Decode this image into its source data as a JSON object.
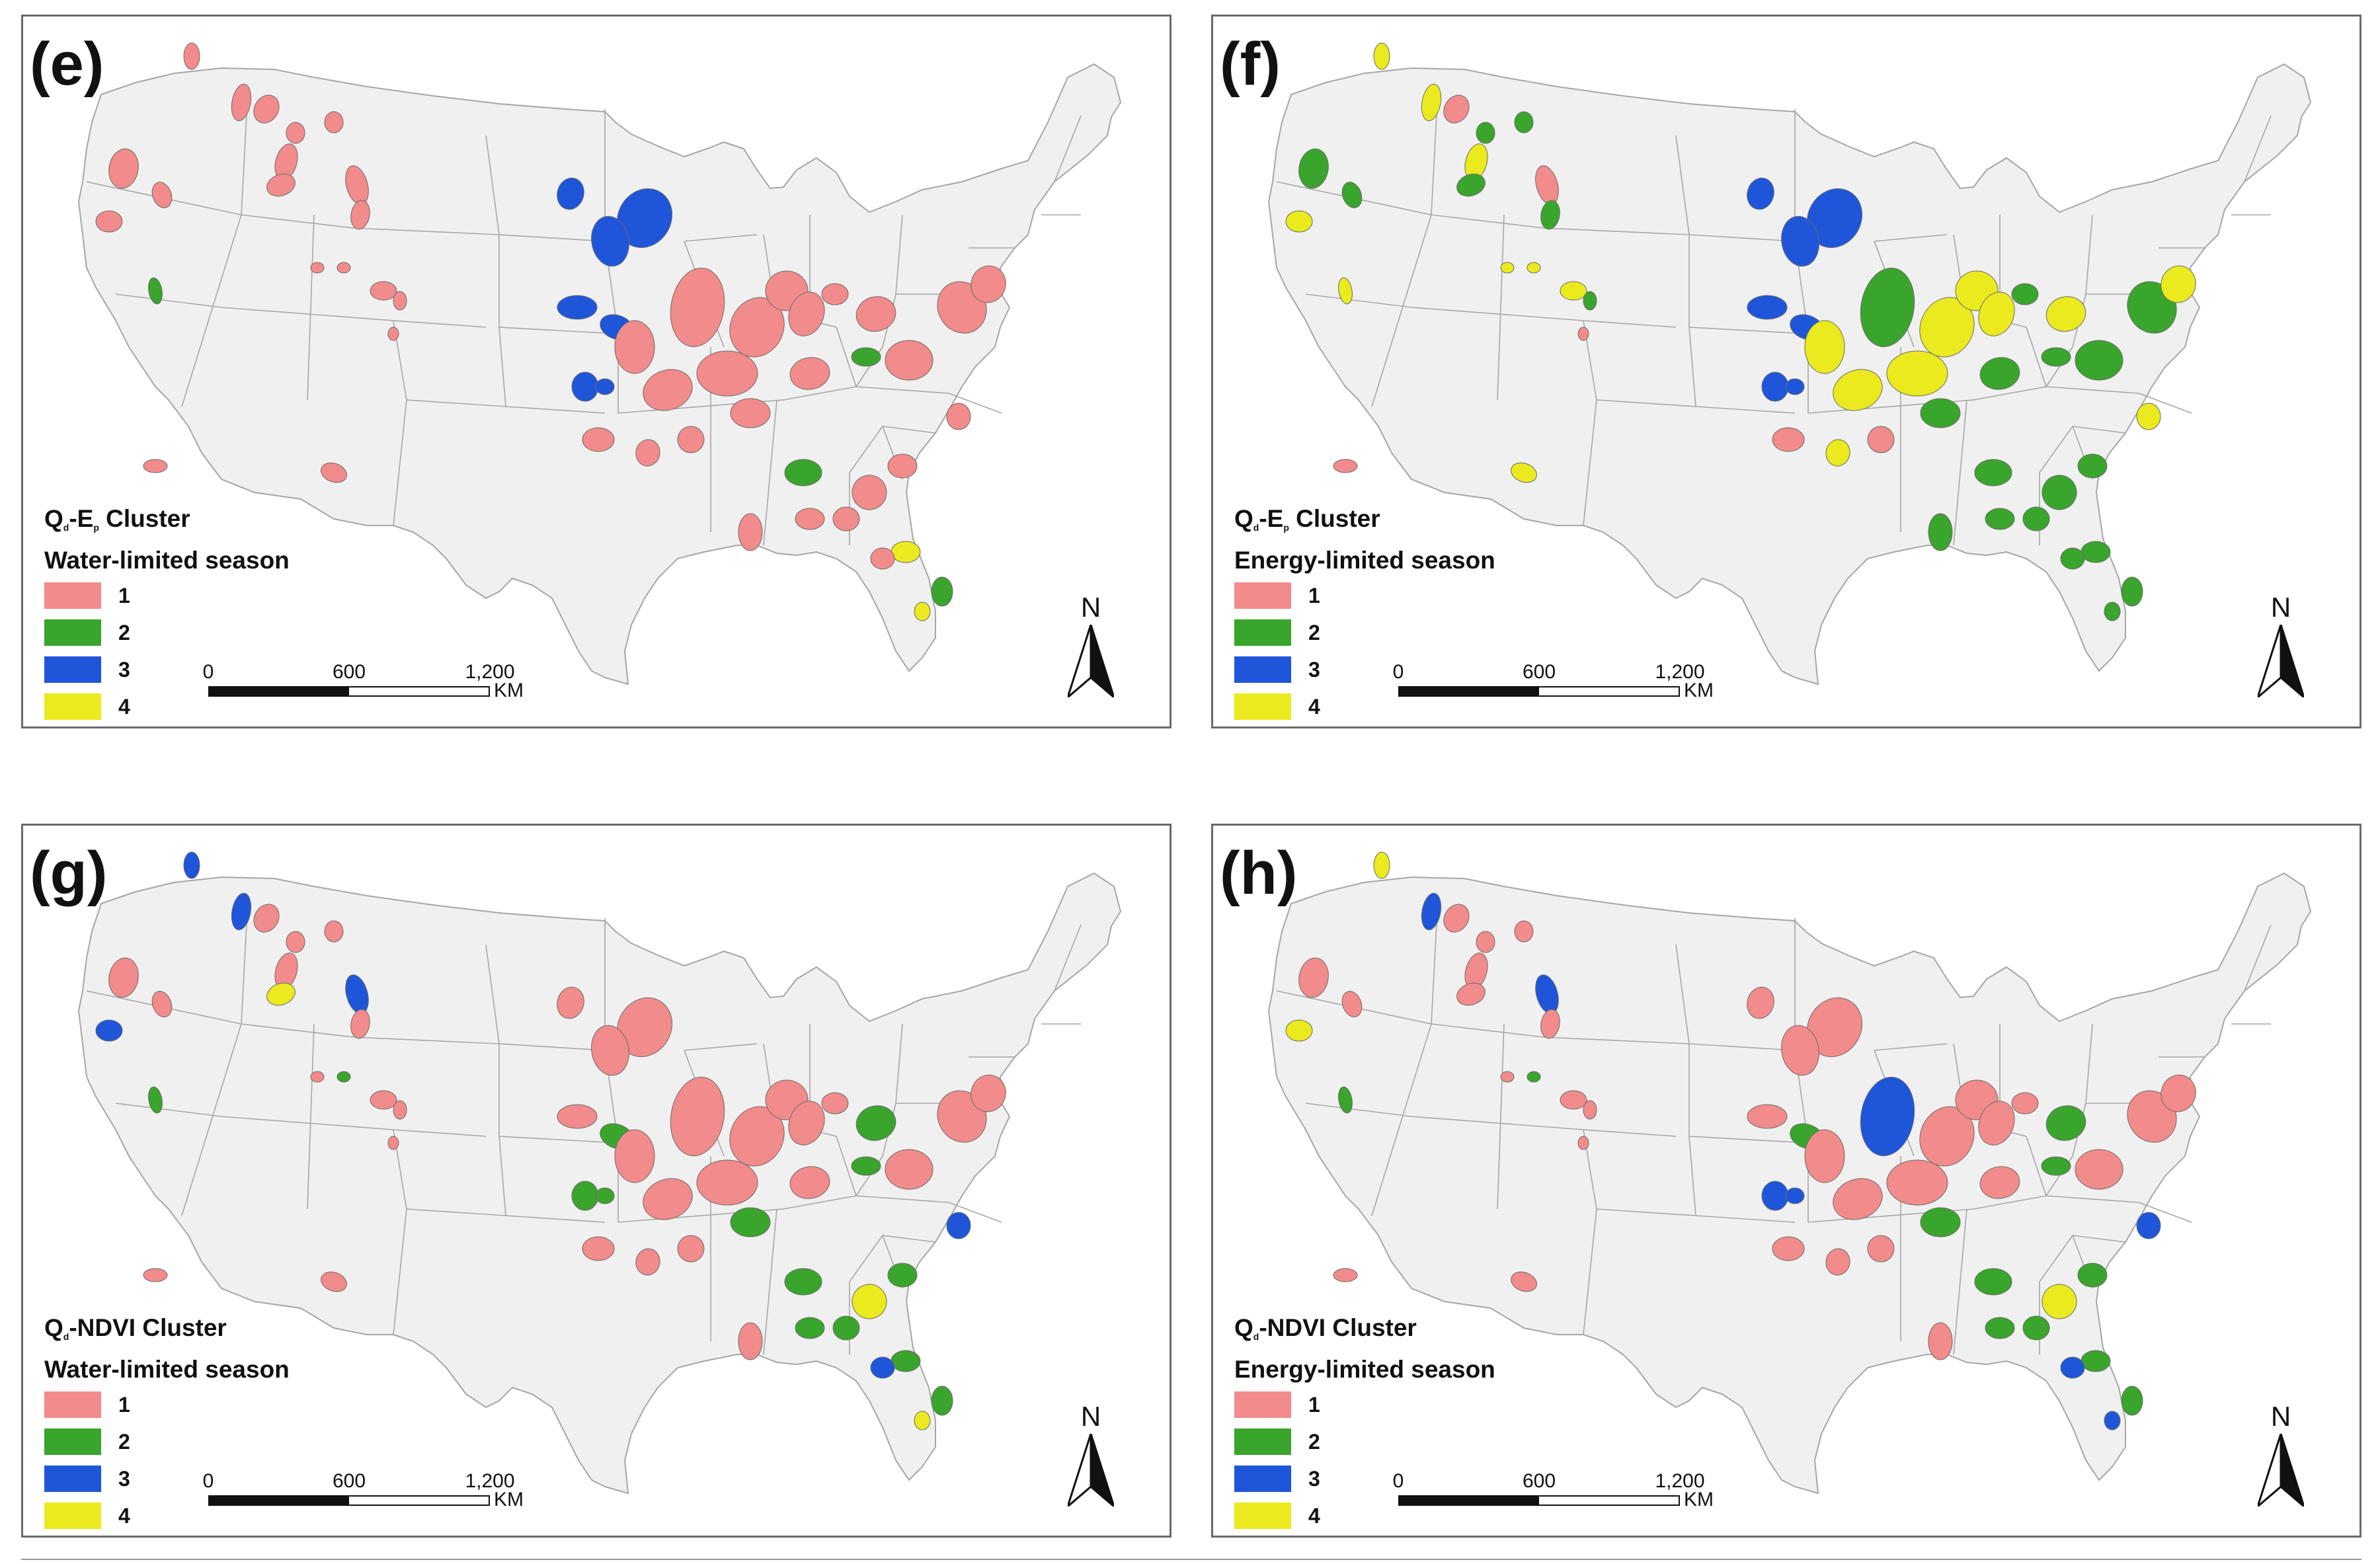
{
  "colors": {
    "1": "#f28b8b",
    "2": "#3aa52c",
    "3": "#1f56d9",
    "4": "#eaea1f",
    "land": "#f0f0f0",
    "border": "#a6a6a6"
  },
  "scale": {
    "t0": "0",
    "t1": "600",
    "t2": "1,200",
    "unit": "KM"
  },
  "north": "N",
  "panels": [
    {
      "label": "(e)",
      "var_main": "Q",
      "var_sub": "d",
      "var_rest": "-E",
      "var_sub2": "p",
      "var_end": " Cluster",
      "season": "Water-limited season",
      "legend": [
        {
          "num": "1"
        },
        {
          "num": "2"
        },
        {
          "num": "3"
        },
        {
          "num": "4"
        }
      ]
    },
    {
      "label": "(f)",
      "var_main": "Q",
      "var_sub": "d",
      "var_rest": "-E",
      "var_sub2": "p",
      "var_end": " Cluster",
      "season": "Energy-limited season",
      "legend": [
        {
          "num": "1"
        },
        {
          "num": "2"
        },
        {
          "num": "3"
        },
        {
          "num": "4"
        }
      ]
    },
    {
      "label": "(g)",
      "var_main": "Q",
      "var_sub": "d",
      "var_rest": "-NDVI",
      "var_sub2": "",
      "var_end": " Cluster",
      "season": "Water-limited season",
      "legend": [
        {
          "num": "1"
        },
        {
          "num": "2"
        },
        {
          "num": "3"
        },
        {
          "num": "4"
        }
      ]
    },
    {
      "label": "(h)",
      "var_main": "Q",
      "var_sub": "d",
      "var_rest": "-NDVI",
      "var_sub2": "",
      "var_end": " Cluster",
      "season": "Energy-limited season",
      "legend": [
        {
          "num": "1"
        },
        {
          "num": "2"
        },
        {
          "num": "3"
        },
        {
          "num": "4"
        }
      ]
    }
  ],
  "basins": {
    "e": [
      1,
      1,
      1,
      1,
      1,
      1,
      1,
      1,
      1,
      1,
      1,
      1,
      1,
      1,
      1,
      1,
      2,
      1,
      1,
      1,
      3,
      3,
      3,
      3,
      3,
      1,
      1,
      1,
      1,
      1,
      1,
      1,
      1,
      1,
      1,
      1,
      1,
      2,
      1,
      1,
      1,
      1,
      3,
      1,
      1,
      1,
      2,
      1,
      1,
      4,
      2,
      1,
      3,
      1,
      1,
      4
    ],
    "f": [
      2,
      2,
      4,
      4,
      4,
      1,
      2,
      4,
      2,
      2,
      1,
      2,
      4,
      4,
      4,
      4,
      4,
      2,
      1,
      1,
      3,
      3,
      3,
      3,
      3,
      4,
      4,
      2,
      4,
      4,
      4,
      4,
      2,
      4,
      2,
      2,
      4,
      2,
      2,
      2,
      1,
      4,
      3,
      1,
      4,
      2,
      2,
      2,
      2,
      2,
      2,
      2,
      3,
      2,
      2,
      2
    ],
    "g": [
      1,
      1,
      3,
      3,
      3,
      1,
      1,
      1,
      4,
      1,
      3,
      1,
      1,
      2,
      1,
      1,
      2,
      1,
      1,
      1,
      1,
      1,
      1,
      1,
      2,
      1,
      1,
      1,
      1,
      1,
      1,
      1,
      1,
      2,
      1,
      1,
      1,
      2,
      1,
      2,
      1,
      1,
      2,
      1,
      3,
      2,
      2,
      2,
      4,
      2,
      2,
      1,
      2,
      2,
      3,
      4
    ],
    "h": [
      1,
      1,
      4,
      3,
      4,
      1,
      1,
      1,
      1,
      1,
      3,
      1,
      1,
      2,
      1,
      1,
      2,
      1,
      1,
      1,
      1,
      1,
      1,
      1,
      2,
      1,
      1,
      3,
      1,
      1,
      1,
      1,
      1,
      2,
      1,
      1,
      1,
      2,
      1,
      2,
      1,
      1,
      3,
      1,
      3,
      2,
      2,
      2,
      4,
      2,
      2,
      1,
      3,
      2,
      3,
      3
    ]
  }
}
